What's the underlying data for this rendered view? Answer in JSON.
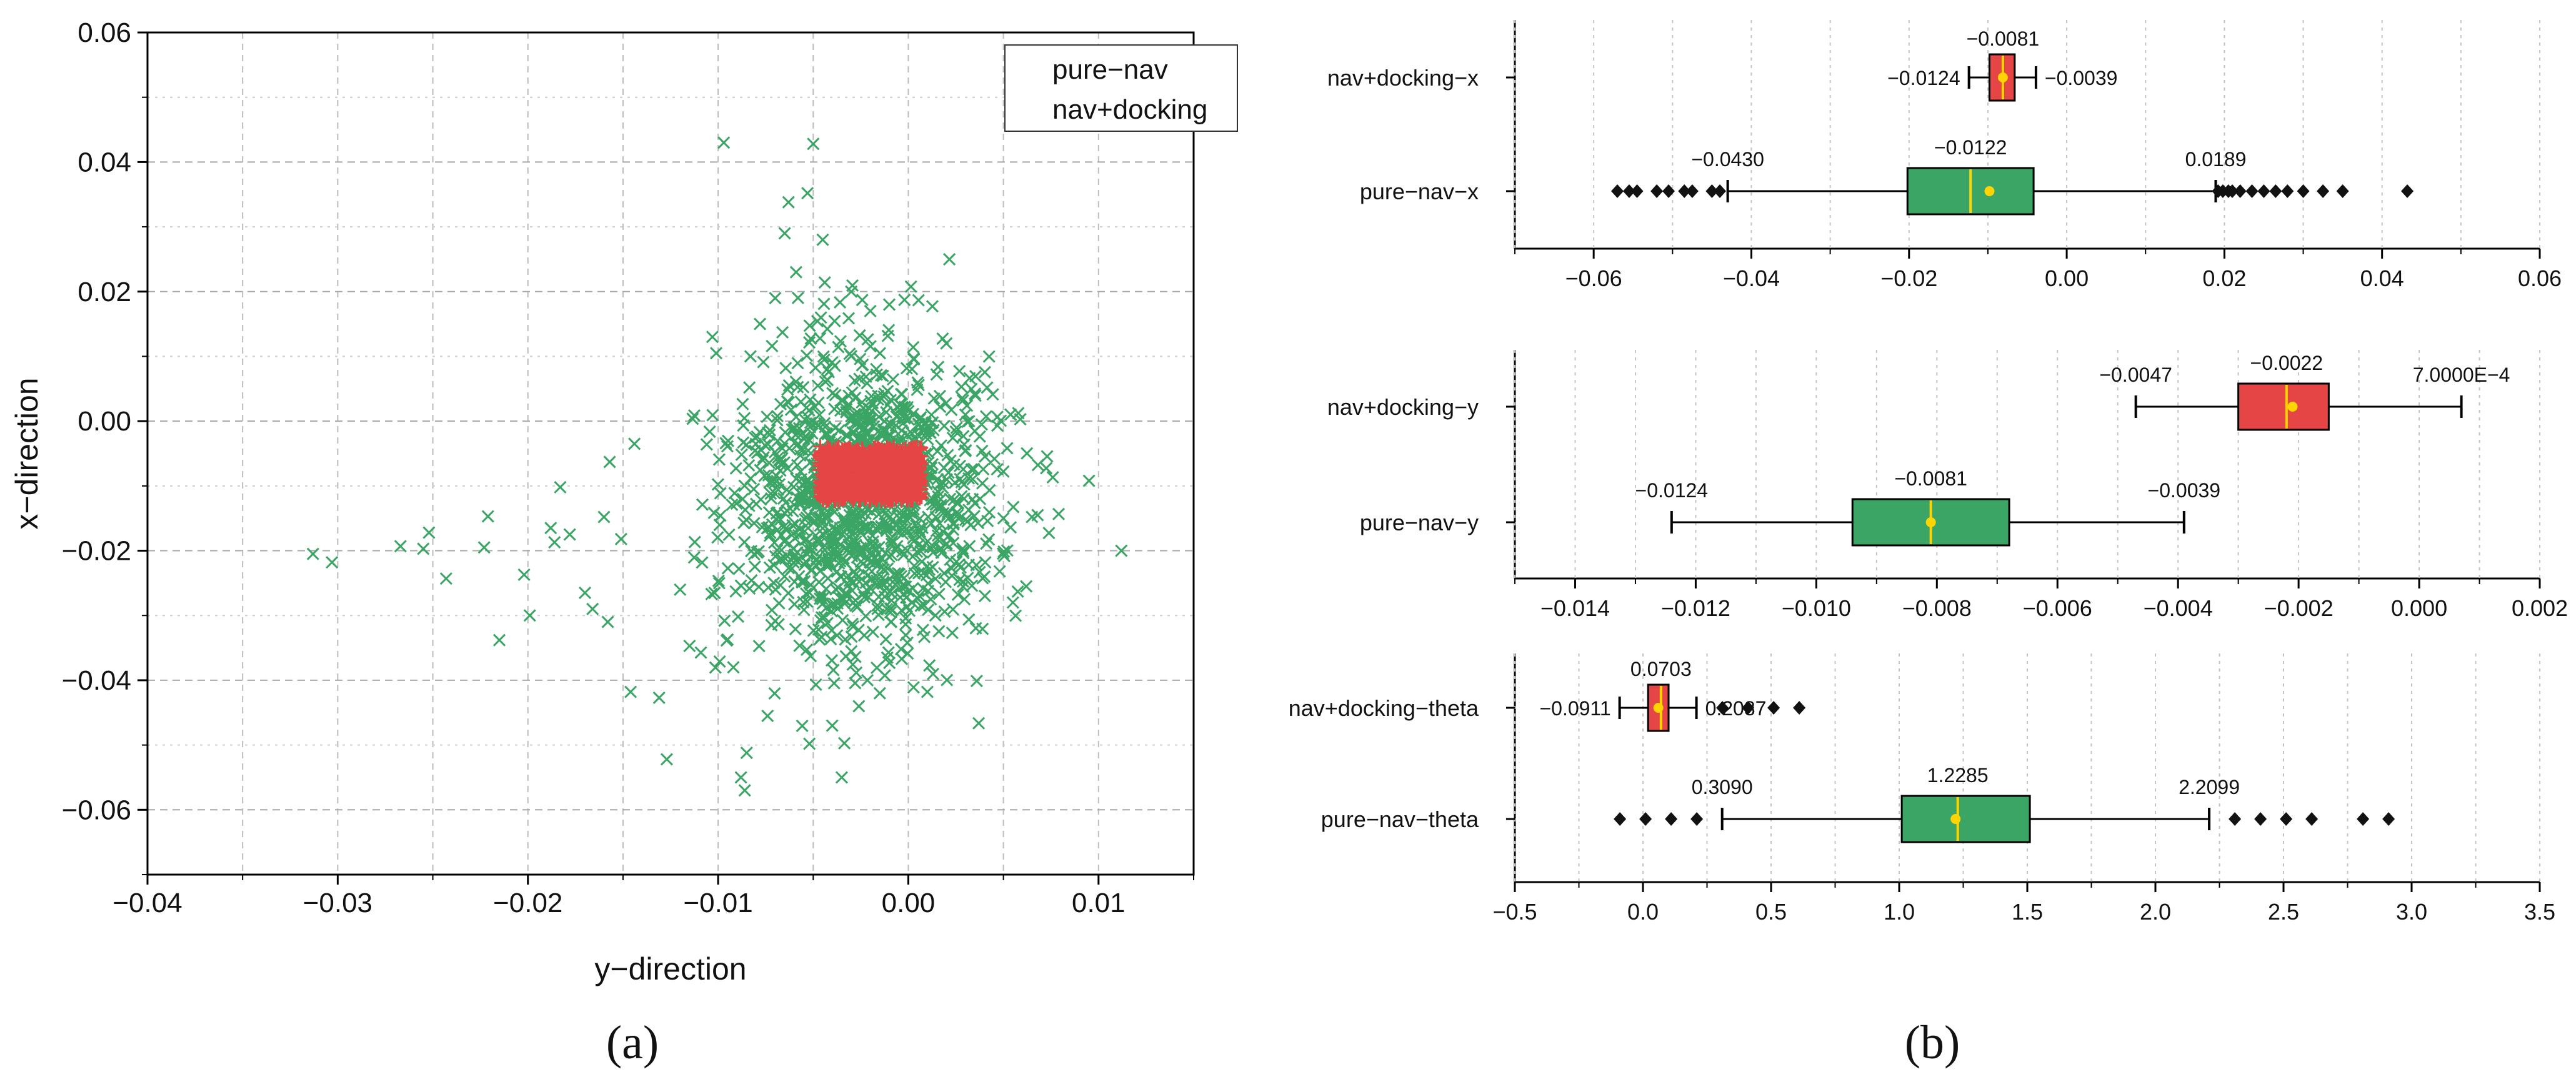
{
  "captions": {
    "a": "(a)",
    "b": "(b)"
  },
  "colors": {
    "green": "#3aa564",
    "red": "#e64545",
    "grid": "#bdbdbd",
    "median": "#ffd400",
    "mean": "#ffd400"
  },
  "chart_data": [
    {
      "type": "scatter",
      "xlabel": "y−direction",
      "ylabel": "x−direction",
      "xlim": [
        -0.04,
        0.015
      ],
      "ylim": [
        -0.07,
        0.06
      ],
      "xticks": [
        -0.04,
        -0.03,
        -0.02,
        -0.01,
        0.0,
        0.01
      ],
      "xtick_labels": [
        "−0.04",
        "−0.03",
        "−0.02",
        "−0.01",
        "0.00",
        "0.01"
      ],
      "yticks": [
        -0.06,
        -0.04,
        -0.02,
        0.0,
        0.02,
        0.04,
        0.06
      ],
      "ytick_labels": [
        "−0.06",
        "−0.04",
        "−0.02",
        "0.00",
        "0.02",
        "0.04",
        "0.06"
      ],
      "legend": [
        "pure−nav",
        "nav+docking"
      ],
      "legend_position": "top-right",
      "series": [
        {
          "name": "pure−nav",
          "marker": "x",
          "color": "#3aa564",
          "cluster": {
            "n": 1300,
            "x_center": -0.0025,
            "x_std": 0.0035,
            "y_center": -0.012,
            "y_std": 0.012
          },
          "points": [
            [
              -0.0313,
              -0.0205
            ],
            [
              -0.0303,
              -0.0218
            ],
            [
              -0.0267,
              -0.0193
            ],
            [
              -0.0255,
              -0.0197
            ],
            [
              -0.0252,
              -0.0172
            ],
            [
              -0.0243,
              -0.0243
            ],
            [
              -0.0221,
              -0.0147
            ],
            [
              -0.0223,
              -0.0195
            ],
            [
              -0.0215,
              -0.0338
            ],
            [
              -0.0202,
              -0.0237
            ],
            [
              -0.0199,
              -0.03
            ],
            [
              -0.0188,
              -0.0165
            ],
            [
              -0.0186,
              -0.0187
            ],
            [
              -0.0183,
              -0.0102
            ],
            [
              -0.0178,
              -0.0175
            ],
            [
              -0.017,
              -0.0265
            ],
            [
              -0.0166,
              -0.029
            ],
            [
              -0.016,
              -0.0148
            ],
            [
              -0.0158,
              -0.031
            ],
            [
              -0.0157,
              -0.0063
            ],
            [
              -0.0151,
              -0.0182
            ],
            [
              -0.0146,
              -0.0418
            ],
            [
              -0.0144,
              -0.0035
            ],
            [
              -0.0131,
              -0.0427
            ],
            [
              -0.0127,
              -0.0522
            ],
            [
              -0.012,
              -0.026
            ],
            [
              -0.0115,
              -0.0347
            ],
            [
              -0.0106,
              -0.0036
            ],
            [
              -0.0103,
              0.013
            ],
            [
              -0.0101,
              0.0105
            ],
            [
              -0.0097,
              0.043
            ],
            [
              -0.0092,
              -0.038
            ],
            [
              -0.0088,
              -0.055
            ],
            [
              -0.0086,
              -0.057
            ],
            [
              -0.0085,
              -0.0512
            ],
            [
              -0.0083,
              0.01
            ],
            [
              -0.0078,
              0.015
            ],
            [
              -0.0074,
              -0.0455
            ],
            [
              -0.007,
              0.019
            ],
            [
              -0.0065,
              0.029
            ],
            [
              -0.0063,
              0.0338
            ],
            [
              -0.0059,
              0.023
            ],
            [
              -0.0053,
              0.0352
            ],
            [
              -0.0052,
              -0.0498
            ],
            [
              -0.005,
              0.0428
            ],
            [
              -0.0045,
              0.028
            ],
            [
              -0.004,
              -0.047
            ],
            [
              -0.0035,
              -0.055
            ],
            [
              -0.003,
              0.02
            ],
            [
              -0.0026,
              -0.044
            ],
            [
              -0.002,
              0.017
            ],
            [
              -0.0015,
              -0.042
            ],
            [
              -0.001,
              0.018
            ],
            [
              0.001,
              -0.0418
            ],
            [
              0.002,
              0.012
            ],
            [
              0.003,
              0.001
            ],
            [
              0.004,
              -0.024
            ],
            [
              0.005,
              -0.015
            ],
            [
              0.0055,
              -0.028
            ],
            [
              0.0062,
              -0.0255
            ],
            [
              0.0065,
              -0.0148
            ],
            [
              0.0068,
              -0.0145
            ],
            [
              0.0095,
              -0.0092
            ],
            [
              0.0112,
              -0.02
            ]
          ]
        },
        {
          "name": "nav+docking",
          "marker": "+",
          "color": "#e64545",
          "cluster": {
            "n": 900,
            "x_min": -0.0047,
            "x_max": 0.0007,
            "y_min": -0.0124,
            "y_max": -0.0039
          }
        }
      ]
    },
    {
      "type": "box",
      "orientation": "horizontal",
      "xlim": [
        -0.07,
        0.06
      ],
      "xticks": [
        -0.06,
        -0.04,
        -0.02,
        0.0,
        0.02,
        0.04,
        0.06
      ],
      "xtick_labels": [
        "−0.06",
        "−0.04",
        "−0.02",
        "0.00",
        "0.02",
        "0.04",
        "0.06"
      ],
      "categories": [
        "nav+docking−x",
        "pure−nav−x"
      ],
      "boxes": [
        {
          "label": "nav+docking−x",
          "color": "#e64545",
          "q1": -0.0098,
          "q3": -0.0066,
          "median": -0.0081,
          "mean": -0.0081,
          "whisker_low": -0.0124,
          "whisker_high": -0.0039,
          "outliers": [],
          "labels": {
            "median": "−0.0081",
            "low": "−0.0124",
            "high": "−0.0039"
          }
        },
        {
          "label": "pure−nav−x",
          "color": "#3aa564",
          "q1": -0.0202,
          "q3": -0.0042,
          "median": -0.0122,
          "mean": -0.0098,
          "whisker_low": -0.043,
          "whisker_high": 0.0189,
          "outliers": [
            -0.057,
            -0.0555,
            -0.0545,
            -0.052,
            -0.0505,
            -0.0485,
            -0.0475,
            -0.045,
            -0.044,
            0.0192,
            0.0198,
            0.0205,
            0.021,
            0.022,
            0.0235,
            0.025,
            0.0265,
            0.028,
            0.03,
            0.0325,
            0.035,
            0.0432
          ],
          "labels": {
            "median": "−0.0122",
            "low": "−0.0430",
            "high": "0.0189"
          }
        }
      ]
    },
    {
      "type": "box",
      "orientation": "horizontal",
      "xlim": [
        -0.015,
        0.002
      ],
      "xticks": [
        -0.014,
        -0.012,
        -0.01,
        -0.008,
        -0.006,
        -0.004,
        -0.002,
        0.0,
        0.002
      ],
      "xtick_labels": [
        "−0.014",
        "−0.012",
        "−0.010",
        "−0.008",
        "−0.006",
        "−0.004",
        "−0.002",
        "0.000",
        "0.002"
      ],
      "categories": [
        "nav+docking−y",
        "pure−nav−y"
      ],
      "boxes": [
        {
          "label": "nav+docking−y",
          "color": "#e64545",
          "q1": -0.003,
          "q3": -0.0015,
          "median": -0.0022,
          "mean": -0.0021,
          "whisker_low": -0.0047,
          "whisker_high": 0.0007,
          "outliers": [],
          "labels": {
            "median": "−0.0022",
            "low": "−0.0047",
            "high": "7.0000E−4"
          }
        },
        {
          "label": "pure−nav−y",
          "color": "#3aa564",
          "q1": -0.0094,
          "q3": -0.0068,
          "median": -0.0081,
          "mean": -0.0081,
          "whisker_low": -0.0124,
          "whisker_high": -0.0039,
          "outliers": [],
          "labels": {
            "median": "−0.0081",
            "low": "−0.0124",
            "high": "−0.0039"
          }
        }
      ]
    },
    {
      "type": "box",
      "orientation": "horizontal",
      "xlim": [
        -0.5,
        3.5
      ],
      "xticks": [
        -0.5,
        0.0,
        0.5,
        1.0,
        1.5,
        2.0,
        2.5,
        3.0,
        3.5
      ],
      "xtick_labels": [
        "−0.5",
        "0.0",
        "0.5",
        "1.0",
        "1.5",
        "2.0",
        "2.5",
        "3.0",
        "3.5"
      ],
      "categories": [
        "nav+docking−theta",
        "pure−nav−theta"
      ],
      "boxes": [
        {
          "label": "nav+docking−theta",
          "color": "#e64545",
          "q1": 0.02,
          "q3": 0.1,
          "median": 0.0703,
          "mean": 0.06,
          "whisker_low": -0.0911,
          "whisker_high": 0.2087,
          "outliers": [
            0.31,
            0.41,
            0.51,
            0.61
          ],
          "labels": {
            "median": "0.0703",
            "low": "−0.0911",
            "high": "0.2087"
          }
        },
        {
          "label": "pure−nav−theta",
          "color": "#3aa564",
          "q1": 1.01,
          "q3": 1.51,
          "median": 1.2285,
          "mean": 1.22,
          "whisker_low": 0.309,
          "whisker_high": 2.2099,
          "outliers": [
            -0.09,
            0.01,
            0.11,
            0.21,
            2.31,
            2.41,
            2.51,
            2.61,
            2.81,
            2.91
          ],
          "labels": {
            "median": "1.2285",
            "low": "0.3090",
            "high": "2.2099"
          }
        }
      ]
    }
  ]
}
